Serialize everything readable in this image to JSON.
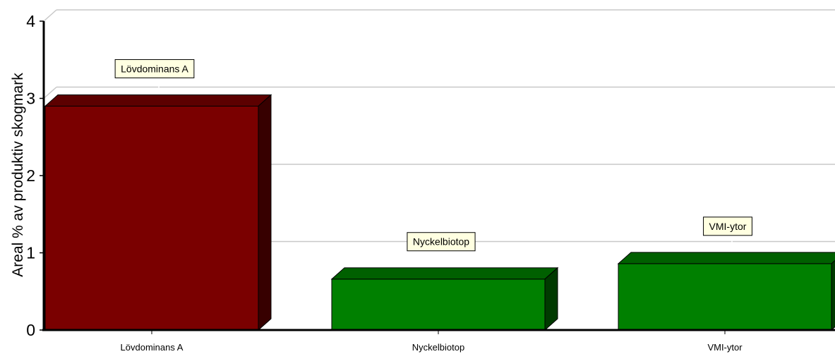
{
  "chart_data": {
    "type": "bar",
    "style": "3d",
    "categories": [
      "Lövdominans A",
      "Nyckelbiotop",
      "VMI-ytor"
    ],
    "values": [
      2.9,
      0.66,
      0.86
    ],
    "colors": [
      "#7a0000",
      "#008000",
      "#008000"
    ],
    "callouts": [
      "Lövdominans  A",
      "Nyckelbiotop",
      "VMI-ytor"
    ],
    "ylabel": "Areal % av produktiv skogmark",
    "ylim": [
      0,
      4
    ],
    "yticks": [
      "0",
      "1",
      "2",
      "3",
      "4"
    ],
    "grid": true,
    "legend": "none"
  }
}
